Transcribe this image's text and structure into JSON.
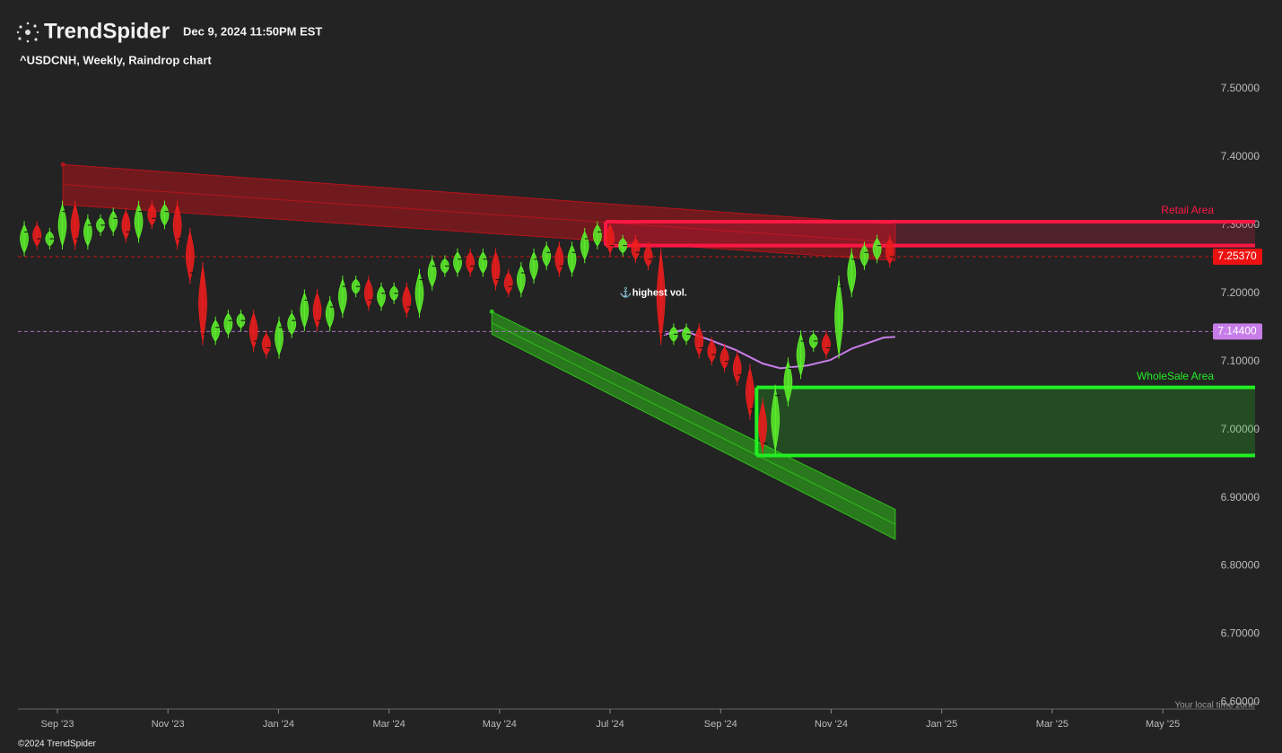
{
  "header": {
    "brand": "TrendSpider",
    "timestamp": "Dec 9, 2024 11:50PM EST",
    "symbol_line": "^USDCNH, Weekly, Raindrop chart",
    "timezone_note": "Your local time zone",
    "copyright": "©2024 TrendSpider"
  },
  "chart_data": {
    "type": "raindrop",
    "xlim": [
      -0.714,
      21.67
    ],
    "xticks": [
      {
        "value": 0,
        "label": "Sep '23"
      },
      {
        "value": 2,
        "label": "Nov '23"
      },
      {
        "value": 4,
        "label": "Jan '24"
      },
      {
        "value": 6,
        "label": "Mar '24"
      },
      {
        "value": 8,
        "label": "May '24"
      },
      {
        "value": 10,
        "label": "Jul '24"
      },
      {
        "value": 12,
        "label": "Sep '24"
      },
      {
        "value": 14,
        "label": "Nov '24"
      },
      {
        "value": 16,
        "label": "Jan '25"
      },
      {
        "value": 18,
        "label": "Mar '25"
      },
      {
        "value": 20,
        "label": "May '25"
      }
    ],
    "ylim": [
      6.59,
      7.525
    ],
    "yticks": [
      {
        "value": 7.5,
        "label": "7.50000"
      },
      {
        "value": 7.4,
        "label": "7.40000"
      },
      {
        "value": 7.3,
        "label": "7.30000"
      },
      {
        "value": 7.2,
        "label": "7.20000"
      },
      {
        "value": 7.1,
        "label": "7.10000"
      },
      {
        "value": 7.0,
        "label": "7.00000"
      },
      {
        "value": 6.9,
        "label": "6.90000"
      },
      {
        "value": 6.8,
        "label": "6.80000"
      },
      {
        "value": 6.7,
        "label": "6.70000"
      },
      {
        "value": 6.6,
        "label": "6.60000"
      }
    ],
    "up_color": "#5cf02a",
    "down_color": "#ee1c1c",
    "x": [
      -0.6,
      -0.37,
      -0.14,
      0.09,
      0.32,
      0.55,
      0.78,
      1.01,
      1.24,
      1.47,
      1.71,
      1.94,
      2.17,
      2.4,
      2.63,
      2.86,
      3.09,
      3.32,
      3.55,
      3.78,
      4.01,
      4.24,
      4.47,
      4.7,
      4.93,
      5.16,
      5.4,
      5.63,
      5.86,
      6.09,
      6.32,
      6.55,
      6.78,
      7.01,
      7.24,
      7.47,
      7.7,
      7.93,
      8.16,
      8.39,
      8.62,
      8.85,
      9.08,
      9.31,
      9.54,
      9.77,
      10.0,
      10.23,
      10.46,
      10.69,
      10.92,
      11.15,
      11.38,
      11.61,
      11.84,
      12.07,
      12.3,
      12.53,
      12.76,
      12.99,
      13.22,
      13.45,
      13.68,
      13.91,
      14.14,
      14.37,
      14.6,
      14.83,
      15.06
    ],
    "open": [
      7.27,
      7.29,
      7.28,
      7.28,
      7.32,
      7.28,
      7.3,
      7.3,
      7.31,
      7.29,
      7.32,
      7.31,
      7.32,
      7.28,
      7.23,
      7.14,
      7.15,
      7.16,
      7.16,
      7.13,
      7.12,
      7.15,
      7.16,
      7.19,
      7.16,
      7.18,
      7.21,
      7.21,
      7.19,
      7.2,
      7.2,
      7.18,
      7.22,
      7.24,
      7.24,
      7.25,
      7.24,
      7.25,
      7.22,
      7.21,
      7.23,
      7.25,
      7.26,
      7.24,
      7.26,
      7.28,
      7.29,
      7.27,
      7.27,
      7.26,
      7.25,
      7.14,
      7.14,
      7.14,
      7.12,
      7.11,
      7.1,
      7.08,
      7.03,
      6.98,
      7.05,
      7.09,
      7.13,
      7.13,
      7.12,
      7.21,
      7.25,
      7.26,
      7.27
    ],
    "close": [
      7.29,
      7.28,
      7.28,
      7.32,
      7.28,
      7.3,
      7.3,
      7.31,
      7.29,
      7.32,
      7.31,
      7.32,
      7.28,
      7.23,
      7.14,
      7.15,
      7.16,
      7.16,
      7.13,
      7.12,
      7.15,
      7.16,
      7.19,
      7.16,
      7.18,
      7.21,
      7.21,
      7.19,
      7.2,
      7.2,
      7.18,
      7.22,
      7.24,
      7.24,
      7.25,
      7.24,
      7.25,
      7.22,
      7.21,
      7.23,
      7.25,
      7.26,
      7.24,
      7.26,
      7.28,
      7.29,
      7.27,
      7.27,
      7.26,
      7.25,
      7.14,
      7.14,
      7.14,
      7.12,
      7.11,
      7.1,
      7.08,
      7.03,
      6.98,
      7.05,
      7.09,
      7.13,
      7.13,
      7.12,
      7.21,
      7.25,
      7.26,
      7.27,
      7.2537
    ],
    "channels": [
      {
        "color": "#b3141c",
        "x": [
          0.1,
          15.16
        ],
        "upper": [
          7.389,
          7.301
        ],
        "lower": [
          7.33,
          7.248
        ]
      },
      {
        "color": "#2fbf1a",
        "x": [
          7.86,
          15.16
        ],
        "upper": [
          7.173,
          6.883
        ],
        "lower": [
          7.14,
          6.839
        ]
      }
    ],
    "zones": [
      {
        "label": "Retail Area",
        "color": "#ff1744",
        "x_start": 9.92,
        "from": 7.27,
        "to": 7.305
      },
      {
        "label": "WholeSale Area",
        "color": "#22ee22",
        "x_start": 12.65,
        "from": 6.962,
        "to": 7.062
      }
    ],
    "moving_average": {
      "color": "#c77de8",
      "x": [
        10.97,
        11.3,
        11.79,
        12.27,
        12.76,
        13.08,
        13.57,
        13.98,
        14.38,
        14.95,
        15.16
      ],
      "values": [
        7.139,
        7.146,
        7.132,
        7.117,
        7.097,
        7.09,
        7.094,
        7.102,
        7.119,
        7.135,
        7.136
      ]
    },
    "price_lines": [
      {
        "value": 7.2537,
        "label": "7.25370",
        "color": "#ee1111"
      },
      {
        "value": 7.144,
        "label": "7.14400",
        "color": "#c77de8"
      }
    ],
    "annotation": {
      "text": "highest vol.",
      "x": 10.4,
      "y": 7.2
    }
  }
}
